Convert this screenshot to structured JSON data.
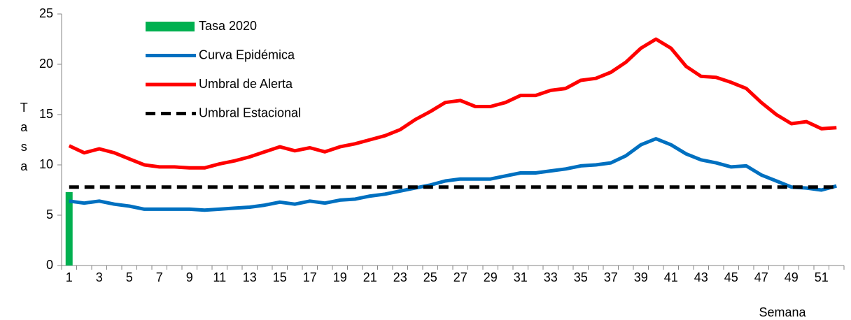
{
  "chart_data": {
    "type": "line",
    "ylabel": "Tasa",
    "xlabel": "Semana",
    "categories": [
      1,
      null,
      3,
      null,
      5,
      null,
      7,
      null,
      9,
      null,
      11,
      null,
      13,
      null,
      15,
      null,
      17,
      null,
      19,
      null,
      21,
      null,
      23,
      null,
      25,
      null,
      27,
      null,
      29,
      null,
      31,
      null,
      33,
      null,
      35,
      null,
      37,
      null,
      39,
      null,
      41,
      null,
      43,
      null,
      45,
      null,
      47,
      null,
      49,
      null,
      51,
      null
    ],
    "ylim": [
      0,
      25
    ],
    "yticks": [
      0,
      5,
      10,
      15,
      20,
      25
    ],
    "legend": "upper left",
    "series": [
      {
        "name": "Tasa 2020",
        "kind": "bar",
        "color": "#00b050",
        "values": [
          7.3,
          null,
          null,
          null,
          null,
          null,
          null,
          null,
          null,
          null,
          null,
          null,
          null,
          null,
          null,
          null,
          null,
          null,
          null,
          null,
          null,
          null,
          null,
          null,
          null,
          null,
          null,
          null,
          null,
          null,
          null,
          null,
          null,
          null,
          null,
          null,
          null,
          null,
          null,
          null,
          null,
          null,
          null,
          null,
          null,
          null,
          null,
          null,
          null,
          null,
          null,
          null
        ]
      },
      {
        "name": "Curva Epidémica",
        "kind": "line",
        "color": "#0070c0",
        "values": [
          6.4,
          6.2,
          6.4,
          6.1,
          5.9,
          5.6,
          5.6,
          5.6,
          5.6,
          5.5,
          5.6,
          5.7,
          5.8,
          6.0,
          6.3,
          6.1,
          6.4,
          6.2,
          6.5,
          6.6,
          6.9,
          7.1,
          7.4,
          7.7,
          8.0,
          8.4,
          8.6,
          8.6,
          8.6,
          8.9,
          9.2,
          9.2,
          9.4,
          9.6,
          9.9,
          10.0,
          10.2,
          10.9,
          12.0,
          12.6,
          12.0,
          11.1,
          10.5,
          10.2,
          9.8,
          9.9,
          9.0,
          8.4,
          7.8,
          7.7,
          7.5,
          7.9
        ]
      },
      {
        "name": "Umbral de Alerta",
        "kind": "line",
        "color": "#ff0000",
        "values": [
          11.9,
          11.2,
          11.6,
          11.2,
          10.6,
          10.0,
          9.8,
          9.8,
          9.7,
          9.7,
          10.1,
          10.4,
          10.8,
          11.3,
          11.8,
          11.4,
          11.7,
          11.3,
          11.8,
          12.1,
          12.5,
          12.9,
          13.5,
          14.5,
          15.3,
          16.2,
          16.4,
          15.8,
          15.8,
          16.2,
          16.9,
          16.9,
          17.4,
          17.6,
          18.4,
          18.6,
          19.2,
          20.2,
          21.6,
          22.5,
          21.6,
          19.8,
          18.8,
          18.7,
          18.2,
          17.6,
          16.2,
          15.0,
          14.1,
          14.3,
          13.6,
          13.7
        ]
      },
      {
        "name": "Umbral Estacional",
        "kind": "line",
        "dashed": true,
        "color": "#000000",
        "values": [
          7.8,
          7.8,
          7.8,
          7.8,
          7.8,
          7.8,
          7.8,
          7.8,
          7.8,
          7.8,
          7.8,
          7.8,
          7.8,
          7.8,
          7.8,
          7.8,
          7.8,
          7.8,
          7.8,
          7.8,
          7.8,
          7.8,
          7.8,
          7.8,
          7.8,
          7.8,
          7.8,
          7.8,
          7.8,
          7.8,
          7.8,
          7.8,
          7.8,
          7.8,
          7.8,
          7.8,
          7.8,
          7.8,
          7.8,
          7.8,
          7.8,
          7.8,
          7.8,
          7.8,
          7.8,
          7.8,
          7.8,
          7.8,
          7.8,
          7.8,
          7.8,
          7.8
        ]
      }
    ]
  }
}
